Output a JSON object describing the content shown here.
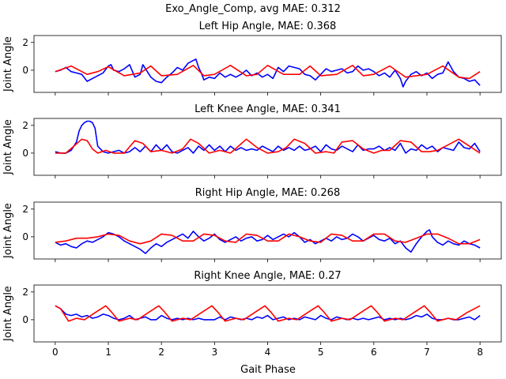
{
  "figure": {
    "suptitle": "Exo_Angle_Comp, avg MAE: 0.312",
    "xlabel": "Gait Phase"
  },
  "chart_data": [
    {
      "type": "line",
      "title": "Left Hip Angle, MAE: 0.368",
      "ylabel": "Joint Angle",
      "xlim": [
        -0.4,
        8.4
      ],
      "ylim": [
        -1.6,
        2.5
      ],
      "xticks": [],
      "yticks": [
        0,
        2
      ],
      "series": [
        {
          "color": "#0000ff",
          "x": [
            0,
            0.1,
            0.2,
            0.3,
            0.4,
            0.5,
            0.6,
            0.7,
            0.8,
            0.9,
            1.0,
            1.05,
            1.1,
            1.2,
            1.3,
            1.4,
            1.5,
            1.6,
            1.65,
            1.7,
            1.8,
            1.9,
            2.0,
            2.1,
            2.2,
            2.3,
            2.4,
            2.5,
            2.6,
            2.65,
            2.7,
            2.75,
            2.8,
            2.9,
            3.0,
            3.1,
            3.2,
            3.3,
            3.4,
            3.5,
            3.6,
            3.7,
            3.8,
            3.9,
            4.0,
            4.1,
            4.2,
            4.3,
            4.4,
            4.5,
            4.6,
            4.7,
            4.8,
            4.9,
            5.0,
            5.1,
            5.2,
            5.3,
            5.4,
            5.5,
            5.6,
            5.7,
            5.8,
            5.9,
            6.0,
            6.1,
            6.2,
            6.3,
            6.4,
            6.5,
            6.55,
            6.6,
            6.7,
            6.8,
            6.9,
            7.0,
            7.1,
            7.2,
            7.3,
            7.4,
            7.5,
            7.6,
            7.7,
            7.8,
            7.9,
            8.0
          ],
          "y": [
            -0.1,
            0.0,
            0.2,
            -0.1,
            -0.2,
            -0.3,
            -0.8,
            -0.6,
            -0.4,
            -0.2,
            0.3,
            0.4,
            0.0,
            -0.1,
            0.1,
            0.4,
            -0.5,
            -0.3,
            0.4,
            0.1,
            -0.5,
            -0.8,
            -0.9,
            -0.5,
            -0.2,
            0.2,
            0.0,
            0.5,
            0.7,
            0.8,
            0.2,
            -0.2,
            -0.7,
            -0.5,
            -0.6,
            -0.2,
            -0.5,
            -0.3,
            -0.5,
            -0.3,
            0.0,
            -0.4,
            -0.2,
            -0.5,
            -0.3,
            -0.6,
            0.2,
            -0.1,
            0.3,
            0.2,
            0.1,
            -0.3,
            -0.4,
            -0.7,
            -0.3,
            0.1,
            -0.1,
            0.0,
            0.1,
            -0.2,
            -0.1,
            0.3,
            0.0,
            0.1,
            -0.1,
            -0.4,
            -0.2,
            -0.5,
            0.0,
            -0.6,
            -1.2,
            -0.8,
            -0.3,
            -0.1,
            -0.4,
            -0.2,
            -0.6,
            -0.3,
            -0.2,
            0.6,
            -0.1,
            -0.5,
            -0.6,
            -0.8,
            -0.7,
            -1.1
          ]
        },
        {
          "color": "#ff0000",
          "x": [
            0,
            0.3,
            0.6,
            0.8,
            1.0,
            1.3,
            1.6,
            1.8,
            2.0,
            2.3,
            2.6,
            2.8,
            3.0,
            3.3,
            3.6,
            3.8,
            4.0,
            4.3,
            4.6,
            4.8,
            5.0,
            5.3,
            5.6,
            5.8,
            6.0,
            6.3,
            6.6,
            6.8,
            7.0,
            7.3,
            7.6,
            7.8,
            8.0
          ],
          "y": [
            -0.1,
            0.3,
            -0.3,
            -0.1,
            0.25,
            -0.4,
            -0.2,
            0.3,
            -0.4,
            -0.3,
            0.35,
            -0.4,
            -0.3,
            0.35,
            -0.4,
            -0.3,
            0.35,
            -0.3,
            -0.3,
            0.3,
            -0.4,
            -0.3,
            0.35,
            -0.4,
            -0.3,
            0.3,
            -0.5,
            -0.4,
            -0.3,
            0.3,
            -0.5,
            -0.6,
            -0.1
          ]
        }
      ]
    },
    {
      "type": "line",
      "title": "Left Knee Angle, MAE: 0.341",
      "ylabel": "Joint Angle",
      "xlim": [
        -0.4,
        8.4
      ],
      "ylim": [
        -1.6,
        2.5
      ],
      "xticks": [],
      "yticks": [
        0,
        2
      ],
      "series": [
        {
          "color": "#0000ff",
          "x": [
            0,
            0.1,
            0.2,
            0.3,
            0.4,
            0.45,
            0.5,
            0.55,
            0.6,
            0.65,
            0.7,
            0.75,
            0.8,
            0.9,
            1.0,
            1.1,
            1.2,
            1.3,
            1.4,
            1.5,
            1.6,
            1.7,
            1.8,
            1.9,
            2.0,
            2.1,
            2.2,
            2.3,
            2.4,
            2.5,
            2.6,
            2.7,
            2.8,
            2.9,
            3.0,
            3.1,
            3.2,
            3.3,
            3.4,
            3.5,
            3.6,
            3.7,
            3.8,
            3.9,
            4.0,
            4.1,
            4.2,
            4.3,
            4.4,
            4.5,
            4.6,
            4.7,
            4.8,
            4.9,
            5.0,
            5.1,
            5.2,
            5.3,
            5.4,
            5.5,
            5.6,
            5.7,
            5.8,
            5.9,
            6.0,
            6.1,
            6.2,
            6.3,
            6.4,
            6.5,
            6.6,
            6.7,
            6.8,
            6.9,
            7.0,
            7.1,
            7.2,
            7.3,
            7.4,
            7.5,
            7.6,
            7.7,
            7.8,
            7.9,
            8.0
          ],
          "y": [
            0.1,
            0.0,
            0.0,
            0.2,
            0.8,
            1.6,
            2.0,
            2.2,
            2.3,
            2.3,
            2.2,
            1.8,
            0.5,
            0.1,
            0.0,
            0.1,
            0.2,
            0.0,
            0.1,
            0.4,
            0.1,
            0.5,
            0.1,
            0.6,
            0.2,
            0.6,
            0.1,
            0.0,
            0.2,
            0.4,
            0.0,
            0.5,
            0.2,
            0.6,
            0.2,
            0.5,
            0.1,
            0.5,
            0.2,
            0.4,
            0.2,
            0.3,
            0.2,
            0.5,
            0.3,
            0.1,
            0.5,
            0.2,
            0.4,
            0.2,
            0.5,
            0.2,
            0.3,
            0.5,
            0.1,
            0.6,
            0.3,
            0.2,
            0.5,
            0.3,
            0.1,
            0.6,
            0.2,
            0.3,
            0.3,
            0.5,
            0.2,
            0.4,
            0.2,
            0.7,
            0.0,
            0.3,
            0.2,
            0.6,
            0.3,
            0.5,
            0.1,
            0.4,
            0.3,
            0.2,
            0.8,
            0.4,
            0.3,
            0.7,
            0.1
          ]
        },
        {
          "color": "#ff0000",
          "x": [
            0,
            0.2,
            0.35,
            0.5,
            0.6,
            0.7,
            0.8,
            0.95,
            1.1,
            1.3,
            1.5,
            1.65,
            1.8,
            2.0,
            2.2,
            2.4,
            2.55,
            2.7,
            2.9,
            3.1,
            3.3,
            3.45,
            3.6,
            3.8,
            4.0,
            4.2,
            4.35,
            4.5,
            4.7,
            4.9,
            5.1,
            5.25,
            5.4,
            5.6,
            5.8,
            6.0,
            6.15,
            6.3,
            6.5,
            6.7,
            6.9,
            7.05,
            7.2,
            7.4,
            7.6,
            7.8,
            8.0
          ],
          "y": [
            0.0,
            0.0,
            0.5,
            1.0,
            0.9,
            0.3,
            0.0,
            0.2,
            0.0,
            0.0,
            0.9,
            0.7,
            0.1,
            0.2,
            0.0,
            0.3,
            1.0,
            0.7,
            0.0,
            0.2,
            0.0,
            0.5,
            1.0,
            0.4,
            0.0,
            0.1,
            0.4,
            1.0,
            0.7,
            0.0,
            0.1,
            0.0,
            0.8,
            0.9,
            0.3,
            0.0,
            0.2,
            0.2,
            0.9,
            0.8,
            0.1,
            0.1,
            0.2,
            0.6,
            1.0,
            0.5,
            0.0
          ]
        }
      ]
    },
    {
      "type": "line",
      "title": "Right Hip Angle, MAE: 0.268",
      "ylabel": "Joint Angle",
      "xlim": [
        -0.4,
        8.4
      ],
      "ylim": [
        -1.6,
        2.5
      ],
      "xticks": [],
      "yticks": [
        0,
        2
      ],
      "series": [
        {
          "color": "#0000ff",
          "x": [
            0,
            0.1,
            0.2,
            0.3,
            0.4,
            0.5,
            0.6,
            0.7,
            0.8,
            0.9,
            1.0,
            1.1,
            1.2,
            1.3,
            1.4,
            1.5,
            1.6,
            1.7,
            1.8,
            1.9,
            2.0,
            2.1,
            2.2,
            2.3,
            2.4,
            2.5,
            2.6,
            2.7,
            2.8,
            2.9,
            3.0,
            3.1,
            3.2,
            3.3,
            3.4,
            3.5,
            3.6,
            3.7,
            3.8,
            3.9,
            4.0,
            4.1,
            4.2,
            4.3,
            4.4,
            4.5,
            4.6,
            4.7,
            4.8,
            4.9,
            5.0,
            5.1,
            5.2,
            5.3,
            5.4,
            5.5,
            5.6,
            5.7,
            5.8,
            5.9,
            6.0,
            6.1,
            6.2,
            6.3,
            6.4,
            6.5,
            6.6,
            6.7,
            6.8,
            6.9,
            7.0,
            7.05,
            7.1,
            7.2,
            7.3,
            7.4,
            7.5,
            7.6,
            7.7,
            7.8,
            7.9,
            8.0
          ],
          "y": [
            -0.4,
            -0.6,
            -0.5,
            -0.7,
            -0.8,
            -0.5,
            -0.3,
            -0.4,
            -0.2,
            0.0,
            0.3,
            0.2,
            0.0,
            -0.3,
            -0.5,
            -0.7,
            -0.9,
            -1.2,
            -0.8,
            -0.5,
            -0.7,
            -0.4,
            -0.2,
            0.0,
            0.2,
            -0.1,
            0.4,
            0.0,
            -0.3,
            -0.1,
            0.2,
            -0.2,
            -0.4,
            -0.2,
            0.0,
            -0.3,
            -0.1,
            0.0,
            -0.3,
            -0.2,
            0.1,
            -0.2,
            0.0,
            0.2,
            0.0,
            0.3,
            0.0,
            -0.4,
            -0.2,
            -0.5,
            -0.3,
            -0.1,
            -0.3,
            0.0,
            -0.2,
            -0.1,
            0.2,
            0.0,
            -0.3,
            -0.1,
            0.1,
            -0.2,
            -0.3,
            -0.1,
            -0.5,
            -0.3,
            -0.8,
            -1.1,
            -0.5,
            0.0,
            0.4,
            0.5,
            0.0,
            -0.4,
            -0.6,
            -0.3,
            -0.5,
            -0.6,
            -0.3,
            -0.5,
            -0.6,
            -0.8
          ]
        },
        {
          "color": "#ff0000",
          "x": [
            0,
            0.2,
            0.4,
            0.6,
            0.8,
            1.0,
            1.2,
            1.4,
            1.6,
            1.8,
            2.0,
            2.2,
            2.4,
            2.6,
            2.8,
            3.0,
            3.2,
            3.4,
            3.6,
            3.8,
            4.0,
            4.2,
            4.4,
            4.6,
            4.8,
            5.0,
            5.2,
            5.4,
            5.6,
            5.8,
            6.0,
            6.2,
            6.4,
            6.6,
            6.8,
            7.0,
            7.2,
            7.4,
            7.6,
            7.8,
            8.0
          ],
          "y": [
            -0.4,
            -0.3,
            -0.1,
            -0.1,
            0.0,
            0.2,
            0.1,
            -0.3,
            -0.5,
            -0.3,
            0.2,
            0.1,
            -0.3,
            -0.3,
            0.2,
            0.1,
            -0.3,
            -0.4,
            0.2,
            0.1,
            -0.3,
            -0.3,
            0.2,
            0.0,
            -0.3,
            -0.4,
            0.2,
            0.1,
            -0.3,
            -0.3,
            0.2,
            0.2,
            -0.3,
            -0.4,
            -0.1,
            0.2,
            0.2,
            -0.1,
            -0.5,
            -0.5,
            -0.2
          ]
        }
      ]
    },
    {
      "type": "line",
      "title": "Right Knee Angle, MAE: 0.27",
      "ylabel": "Joint Angle",
      "xlim": [
        -0.4,
        8.4
      ],
      "ylim": [
        -1.6,
        2.5
      ],
      "xticks": [
        0,
        1,
        2,
        3,
        4,
        5,
        6,
        7,
        8
      ],
      "yticks": [
        0,
        2
      ],
      "series": [
        {
          "color": "#0000ff",
          "x": [
            0,
            0.1,
            0.2,
            0.3,
            0.4,
            0.5,
            0.6,
            0.7,
            0.8,
            0.9,
            1.0,
            1.1,
            1.2,
            1.3,
            1.4,
            1.5,
            1.6,
            1.7,
            1.8,
            1.9,
            2.0,
            2.1,
            2.2,
            2.3,
            2.4,
            2.5,
            2.6,
            2.7,
            2.8,
            2.9,
            3.0,
            3.1,
            3.2,
            3.3,
            3.4,
            3.5,
            3.6,
            3.7,
            3.8,
            3.9,
            4.0,
            4.1,
            4.2,
            4.3,
            4.4,
            4.5,
            4.6,
            4.7,
            4.8,
            4.9,
            5.0,
            5.1,
            5.2,
            5.3,
            5.4,
            5.5,
            5.6,
            5.7,
            5.8,
            5.9,
            6.0,
            6.1,
            6.2,
            6.3,
            6.4,
            6.5,
            6.6,
            6.7,
            6.8,
            6.9,
            7.0,
            7.1,
            7.2,
            7.3,
            7.4,
            7.5,
            7.6,
            7.7,
            7.8,
            7.9,
            8.0
          ],
          "y": [
            1.0,
            0.8,
            0.4,
            0.3,
            0.4,
            0.2,
            0.3,
            0.1,
            0.2,
            0.4,
            0.3,
            0.1,
            0.0,
            0.1,
            0.3,
            0.0,
            0.1,
            0.2,
            0.0,
            0.0,
            0.3,
            0.1,
            0.0,
            0.1,
            0.0,
            0.1,
            0.0,
            0.1,
            0.0,
            0.0,
            0.0,
            0.2,
            0.0,
            0.2,
            0.1,
            0.0,
            0.1,
            0.0,
            0.2,
            0.1,
            0.3,
            0.0,
            0.1,
            0.2,
            0.0,
            0.1,
            0.0,
            0.2,
            0.1,
            0.0,
            0.3,
            0.1,
            0.0,
            0.2,
            0.1,
            0.0,
            0.1,
            0.0,
            0.1,
            0.0,
            0.1,
            0.2,
            0.0,
            0.1,
            0.0,
            0.1,
            0.0,
            0.1,
            0.3,
            0.2,
            0.4,
            0.1,
            0.0,
            0.0,
            0.1,
            0.0,
            0.0,
            0.1,
            0.2,
            0.0,
            0.3
          ]
        },
        {
          "color": "#ff0000",
          "x": [
            0,
            0.1,
            0.25,
            0.4,
            0.55,
            0.75,
            0.95,
            1.05,
            1.2,
            1.4,
            1.55,
            1.75,
            1.95,
            2.05,
            2.2,
            2.4,
            2.55,
            2.75,
            2.95,
            3.05,
            3.2,
            3.4,
            3.55,
            3.75,
            3.95,
            4.05,
            4.2,
            4.4,
            4.55,
            4.75,
            4.95,
            5.05,
            5.2,
            5.4,
            5.55,
            5.75,
            5.95,
            6.05,
            6.2,
            6.4,
            6.55,
            6.75,
            6.95,
            7.05,
            7.2,
            7.4,
            7.55,
            7.75,
            7.95,
            8.0
          ],
          "y": [
            1.0,
            0.8,
            -0.1,
            0.1,
            0.0,
            0.5,
            1.0,
            0.6,
            -0.1,
            0.1,
            0.0,
            0.5,
            1.0,
            0.6,
            -0.1,
            0.1,
            0.0,
            0.5,
            1.0,
            0.6,
            -0.1,
            0.1,
            0.0,
            0.5,
            1.0,
            0.6,
            -0.1,
            0.1,
            0.0,
            0.5,
            1.0,
            0.6,
            -0.1,
            0.1,
            0.0,
            0.5,
            1.0,
            0.6,
            -0.1,
            0.1,
            0.0,
            0.5,
            1.0,
            0.6,
            -0.1,
            0.1,
            0.0,
            0.5,
            0.9,
            1.0
          ]
        }
      ]
    }
  ]
}
